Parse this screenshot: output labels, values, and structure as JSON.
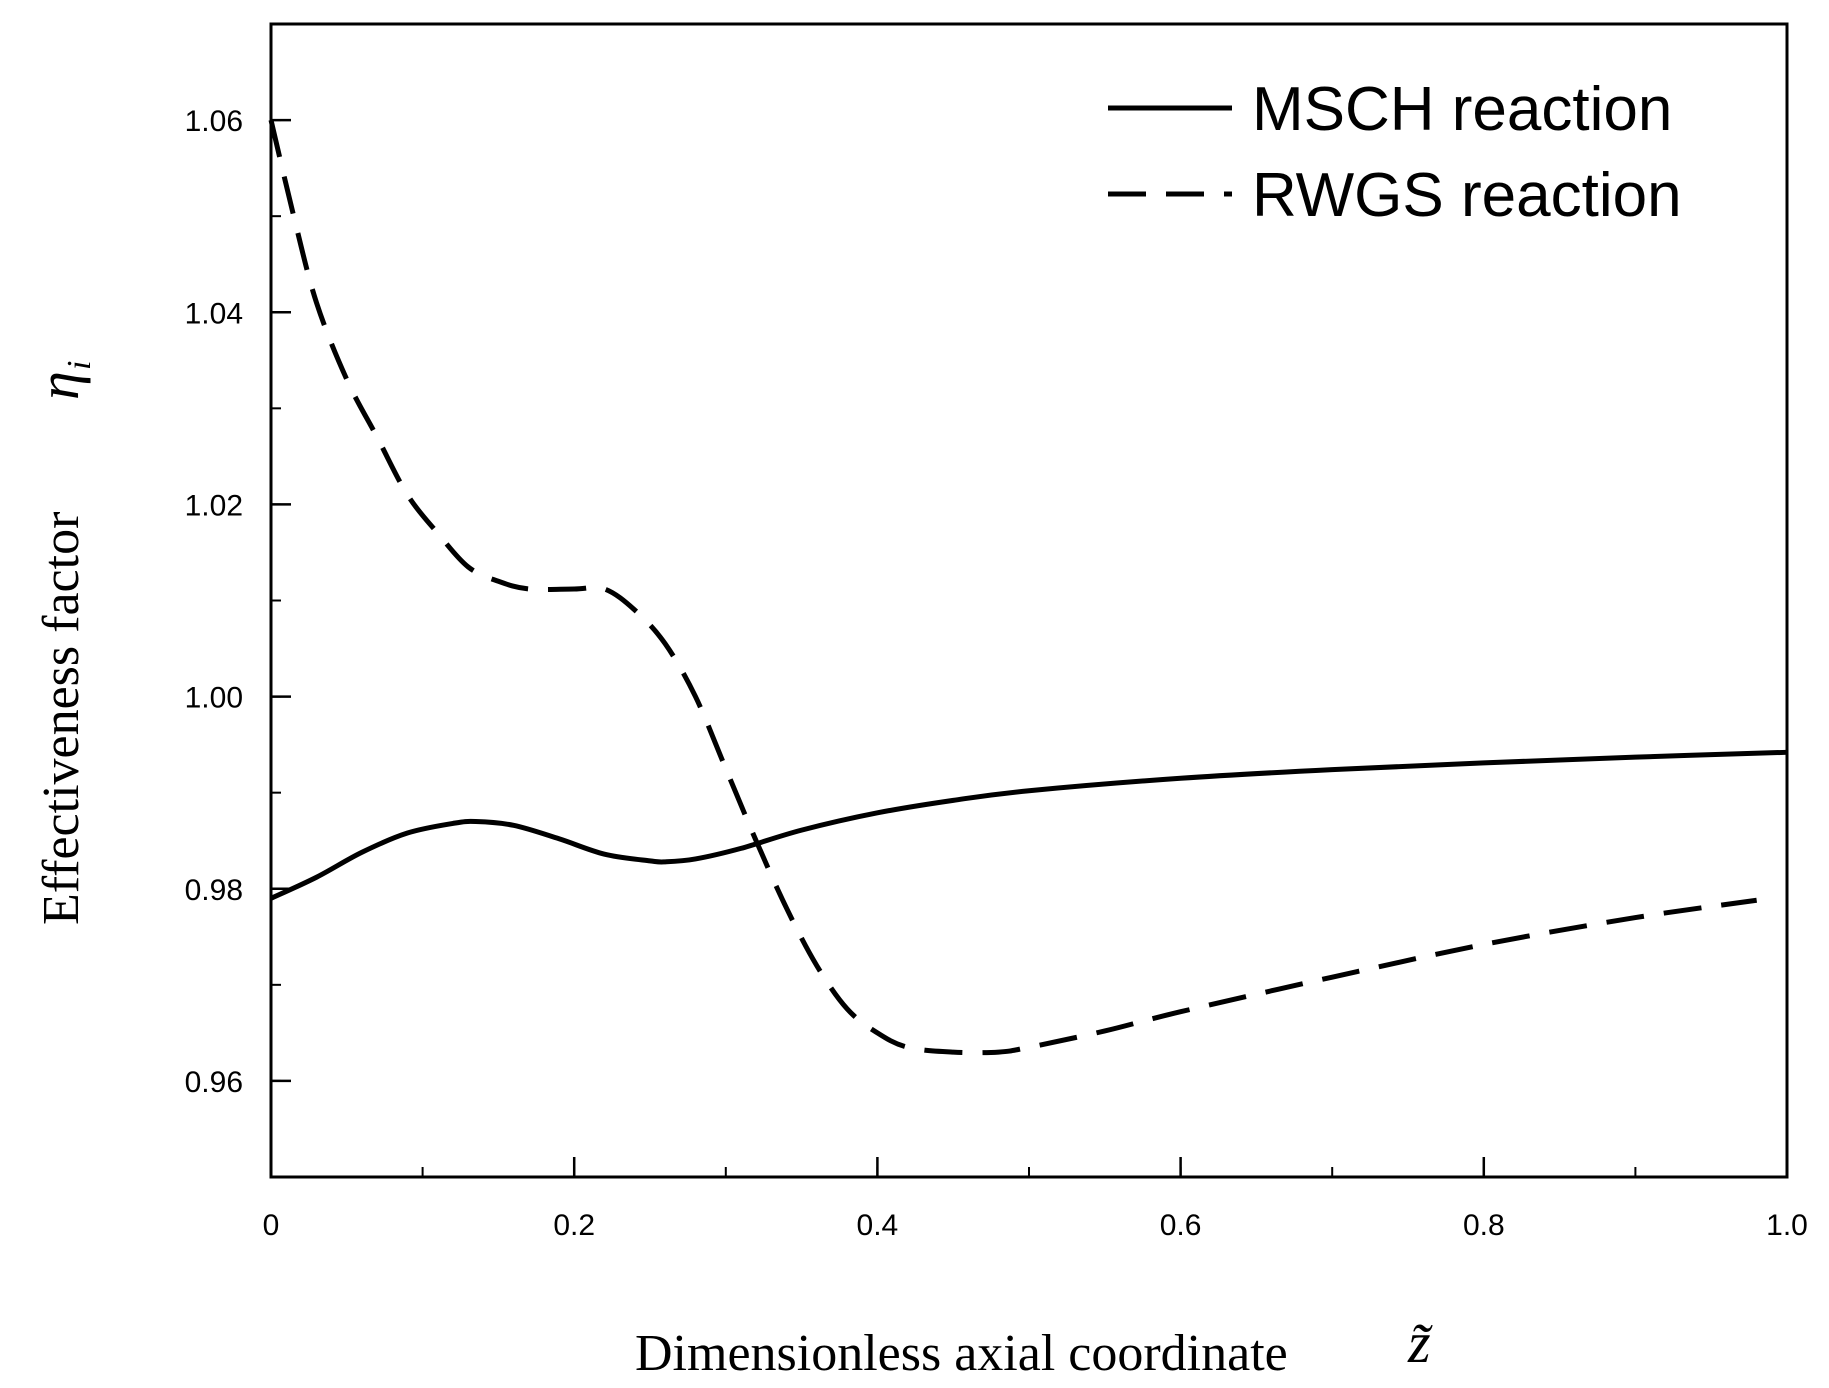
{
  "chart_data": {
    "type": "line",
    "title": "",
    "xlabel": "Dimensionless axial coordinate",
    "xlabel_symbol": "z̃",
    "ylabel": "Effectiveness factor",
    "ylabel_symbol": "η",
    "ylabel_symbol_sub": "i",
    "xlim": [
      0,
      1.0
    ],
    "ylim": [
      0.95,
      1.07
    ],
    "x_ticks": [
      0,
      0.2,
      0.4,
      0.6,
      0.8,
      1.0
    ],
    "x_tick_labels": [
      "0",
      "0.2",
      "0.4",
      "0.6",
      "0.8",
      "1.0"
    ],
    "x_minor_step": 0.1,
    "y_ticks": [
      0.96,
      0.98,
      1.0,
      1.02,
      1.04,
      1.06
    ],
    "y_tick_labels": [
      "0.96",
      "0.98",
      "1.00",
      "1.02",
      "1.04",
      "1.06"
    ],
    "y_minor_step": 0.01,
    "grid": false,
    "legend_position": "top-right",
    "series": [
      {
        "name": "MSCH reaction",
        "style": "solid",
        "x": [
          0,
          0.03,
          0.06,
          0.09,
          0.12,
          0.135,
          0.16,
          0.19,
          0.22,
          0.25,
          0.26,
          0.28,
          0.31,
          0.35,
          0.4,
          0.45,
          0.5,
          0.6,
          0.7,
          0.8,
          0.9,
          1.0
        ],
        "y": [
          0.979,
          0.9812,
          0.9838,
          0.9858,
          0.9868,
          0.987,
          0.9866,
          0.9852,
          0.9836,
          0.9829,
          0.9828,
          0.9831,
          0.9842,
          0.9861,
          0.9879,
          0.9892,
          0.9902,
          0.9915,
          0.9924,
          0.9931,
          0.9937,
          0.9942
        ]
      },
      {
        "name": "RWGS reaction",
        "style": "dashed",
        "x": [
          0,
          0.015,
          0.03,
          0.05,
          0.07,
          0.09,
          0.11,
          0.13,
          0.15,
          0.17,
          0.2,
          0.22,
          0.24,
          0.26,
          0.28,
          0.3,
          0.32,
          0.34,
          0.36,
          0.38,
          0.4,
          0.42,
          0.45,
          0.48,
          0.5,
          0.55,
          0.6,
          0.7,
          0.8,
          0.9,
          0.98
        ],
        "y": [
          1.06,
          1.05,
          1.041,
          1.033,
          1.027,
          1.021,
          1.017,
          1.0135,
          1.012,
          1.0112,
          1.0112,
          1.0112,
          1.009,
          1.0055,
          1.0,
          0.9925,
          0.985,
          0.978,
          0.972,
          0.9675,
          0.965,
          0.9635,
          0.963,
          0.963,
          0.9635,
          0.9652,
          0.9672,
          0.9708,
          0.9742,
          0.977,
          0.9788
        ]
      }
    ]
  }
}
